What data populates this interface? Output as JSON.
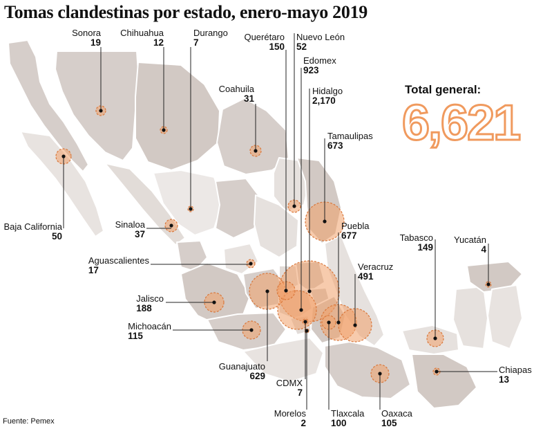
{
  "title": "Tomas clandestinas  por estado, enero-mayo 2019",
  "total": {
    "label": "Total general:",
    "value": "6,621"
  },
  "source": "Fuente: Pemex",
  "colors": {
    "accent": "#f0a06a",
    "accent_dark": "#d9783c",
    "land_dark": "#d2c9c4",
    "land_light": "#e9e4e1",
    "leader": "#222222"
  },
  "states": {
    "sonora": {
      "name": "Sonora",
      "value": "19"
    },
    "chihuahua": {
      "name": "Chihuahua",
      "value": "12"
    },
    "durango": {
      "name": "Durango",
      "value": "7"
    },
    "queretaro": {
      "name": "Querétaro",
      "value": "150"
    },
    "nuevo_leon": {
      "name": "Nuevo León",
      "value": "52"
    },
    "edomex": {
      "name": "Edomex",
      "value": "923"
    },
    "coahuila": {
      "name": "Coahuila",
      "value": "31"
    },
    "hidalgo": {
      "name": "Hidalgo",
      "value": "2,170"
    },
    "tamaulipas": {
      "name": "Tamaulipas",
      "value": "673"
    },
    "baja_california": {
      "name": "Baja California",
      "value": "50"
    },
    "sinaloa": {
      "name": "Sinaloa",
      "value": "37"
    },
    "puebla": {
      "name": "Puebla",
      "value": "677"
    },
    "tabasco": {
      "name": "Tabasco",
      "value": "149"
    },
    "yucatan": {
      "name": "Yucatán",
      "value": "4"
    },
    "aguascalientes": {
      "name": "Aguascalientes",
      "value": "17"
    },
    "veracruz": {
      "name": "Veracruz",
      "value": "491"
    },
    "jalisco": {
      "name": "Jalisco",
      "value": "188"
    },
    "michoacan": {
      "name": "Michoacán",
      "value": "115"
    },
    "guanajuato": {
      "name": "Guanajuato",
      "value": "629"
    },
    "chiapas": {
      "name": "Chiapas",
      "value": "13"
    },
    "cdmx": {
      "name": "CDMX",
      "value": "7"
    },
    "oaxaca": {
      "name": "Oaxaca",
      "value": "105"
    },
    "morelos": {
      "name": "Morelos",
      "value": "2"
    },
    "tlaxcala": {
      "name": "Tlaxcala",
      "value": "100"
    }
  }
}
